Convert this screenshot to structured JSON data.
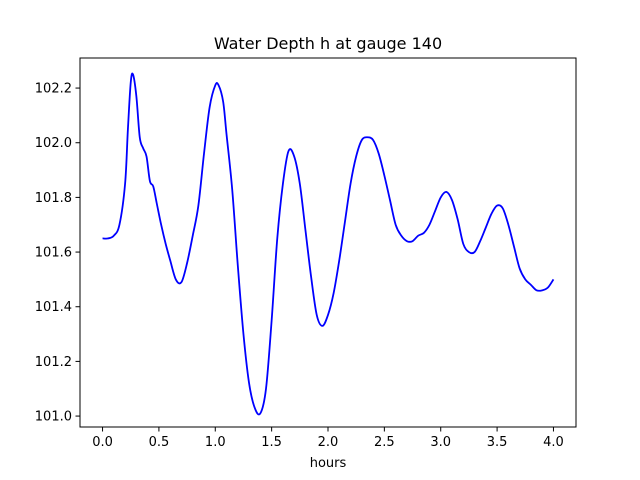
{
  "chart_data": {
    "type": "line",
    "title": "Water Depth h at gauge 140",
    "xlabel": "hours",
    "ylabel": "",
    "xlim": [
      -0.2,
      4.2
    ],
    "ylim": [
      100.96,
      102.31
    ],
    "xticks": [
      0.0,
      0.5,
      1.0,
      1.5,
      2.0,
      2.5,
      3.0,
      3.5,
      4.0
    ],
    "xtick_labels": [
      "0.0",
      "0.5",
      "1.0",
      "1.5",
      "2.0",
      "2.5",
      "3.0",
      "3.5",
      "4.0"
    ],
    "yticks": [
      101.0,
      101.2,
      101.4,
      101.6,
      101.8,
      102.0,
      102.2
    ],
    "ytick_labels": [
      "101.0",
      "101.2",
      "101.4",
      "101.6",
      "101.8",
      "102.0",
      "102.2"
    ],
    "grid": false,
    "series": [
      {
        "color": "#0000ff",
        "x": [
          0.0,
          0.05,
          0.1,
          0.15,
          0.2,
          0.225,
          0.25,
          0.27,
          0.3,
          0.33,
          0.36,
          0.39,
          0.42,
          0.45,
          0.48,
          0.52,
          0.56,
          0.6,
          0.65,
          0.7,
          0.75,
          0.8,
          0.85,
          0.9,
          0.95,
          1.0,
          1.03,
          1.07,
          1.1,
          1.15,
          1.2,
          1.25,
          1.3,
          1.35,
          1.4,
          1.45,
          1.5,
          1.55,
          1.6,
          1.65,
          1.7,
          1.75,
          1.8,
          1.85,
          1.9,
          1.95,
          2.0,
          2.05,
          2.1,
          2.15,
          2.2,
          2.25,
          2.3,
          2.35,
          2.4,
          2.45,
          2.5,
          2.55,
          2.6,
          2.65,
          2.7,
          2.75,
          2.8,
          2.85,
          2.9,
          2.95,
          3.0,
          3.05,
          3.1,
          3.15,
          3.2,
          3.25,
          3.3,
          3.35,
          3.4,
          3.45,
          3.5,
          3.55,
          3.6,
          3.65,
          3.7,
          3.75,
          3.8,
          3.85,
          3.9,
          3.95,
          4.0
        ],
        "y": [
          101.65,
          101.65,
          101.66,
          101.7,
          101.85,
          102.05,
          102.22,
          102.25,
          102.17,
          102.02,
          101.98,
          101.95,
          101.86,
          101.84,
          101.78,
          101.7,
          101.63,
          101.57,
          101.5,
          101.49,
          101.56,
          101.66,
          101.77,
          101.96,
          102.13,
          102.21,
          102.21,
          102.15,
          102.03,
          101.83,
          101.55,
          101.3,
          101.12,
          101.03,
          101.01,
          101.1,
          101.35,
          101.65,
          101.85,
          101.97,
          101.95,
          101.85,
          101.68,
          101.51,
          101.37,
          101.33,
          101.37,
          101.45,
          101.57,
          101.71,
          101.85,
          101.95,
          102.01,
          102.02,
          102.01,
          101.96,
          101.88,
          101.79,
          101.7,
          101.66,
          101.64,
          101.64,
          101.66,
          101.67,
          101.7,
          101.75,
          101.8,
          101.82,
          101.79,
          101.72,
          101.63,
          101.6,
          101.6,
          101.64,
          101.69,
          101.74,
          101.77,
          101.76,
          101.7,
          101.62,
          101.54,
          101.5,
          101.48,
          101.46,
          101.46,
          101.47,
          101.5
        ]
      }
    ]
  }
}
